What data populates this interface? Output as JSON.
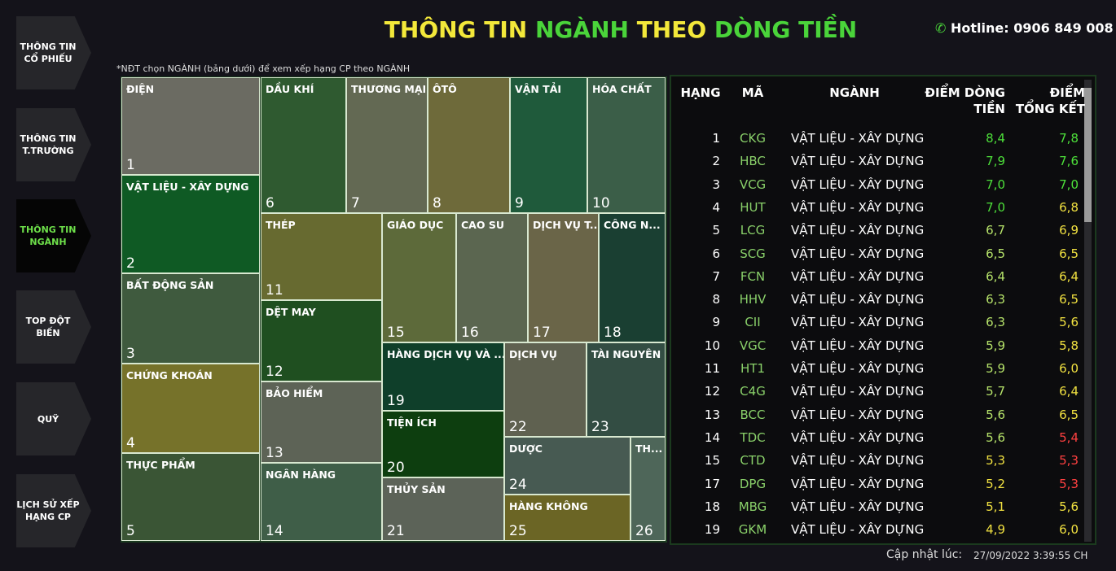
{
  "nav": [
    "THÔNG TIN CỔ PHIẾU",
    "THÔNG TIN T.TRƯỜNG",
    "THÔNG TIN NGÀNH",
    "TOP ĐỘT BIẾN",
    "QUỸ",
    "LỊCH SỬ XẾP HẠNG CP"
  ],
  "title": [
    "THÔNG TIN",
    "NGÀNH",
    "THEO",
    "DÒNG TIỀN"
  ],
  "hotline": "Hotline: 0906 849 008",
  "note": "*NĐT chọn NGÀNH (bảng dưới) để xem xếp hạng CP theo NGÀNH",
  "tiles": [
    [
      "ĐIỆN",
      "1"
    ],
    [
      "VẬT LIỆU - XÂY DỰNG",
      "2"
    ],
    [
      "BẤT ĐỘNG SẢN",
      "3"
    ],
    [
      "CHỨNG KHOÁN",
      "4"
    ],
    [
      "THỰC PHẨM",
      "5"
    ],
    [
      "DẦU KHÍ",
      "6"
    ],
    [
      "THƯƠNG MẠI",
      "7"
    ],
    [
      "ÔTÔ",
      "8"
    ],
    [
      "VẬN TẢI",
      "9"
    ],
    [
      "HÓA CHẤT",
      "10"
    ],
    [
      "THÉP",
      "11"
    ],
    [
      "DỆT MAY",
      "12"
    ],
    [
      "BẢO HIỂM",
      "13"
    ],
    [
      "NGÂN HÀNG",
      "14"
    ],
    [
      "GIÁO DỤC",
      "15"
    ],
    [
      "CAO SU",
      "16"
    ],
    [
      "DỊCH VỤ T...",
      "17"
    ],
    [
      "CÔNG N...",
      "18"
    ],
    [
      "HÀNG DỊCH VỤ VÀ ...",
      "19"
    ],
    [
      "TIỆN ÍCH",
      "20"
    ],
    [
      "THỦY SẢN",
      "21"
    ],
    [
      "DỊCH VỤ",
      "22"
    ],
    [
      "TÀI NGUYÊN",
      "23"
    ],
    [
      "DƯỢC",
      "24"
    ],
    [
      "HÀNG KHÔNG",
      "25"
    ],
    [
      "TH...",
      "26"
    ]
  ],
  "table": {
    "header": [
      "HẠNG",
      "MÃ",
      "NGÀNH",
      "ĐIỂM DÒNG TIỀN",
      "ĐIỂM TỔNG KẾT"
    ],
    "rows": [
      [
        "1",
        "CKG",
        "VẬT LIỆU - XÂY DỰNG",
        "8,4",
        "7,8"
      ],
      [
        "2",
        "HBC",
        "VẬT LIỆU - XÂY DỰNG",
        "7,9",
        "7,6"
      ],
      [
        "3",
        "VCG",
        "VẬT LIỆU - XÂY DỰNG",
        "7,0",
        "7,0"
      ],
      [
        "4",
        "HUT",
        "VẬT LIỆU - XÂY DỰNG",
        "7,0",
        "6,8"
      ],
      [
        "5",
        "LCG",
        "VẬT LIỆU - XÂY DỰNG",
        "6,7",
        "6,9"
      ],
      [
        "6",
        "SCG",
        "VẬT LIỆU - XÂY DỰNG",
        "6,5",
        "6,5"
      ],
      [
        "7",
        "FCN",
        "VẬT LIỆU - XÂY DỰNG",
        "6,4",
        "6,4"
      ],
      [
        "8",
        "HHV",
        "VẬT LIỆU - XÂY DỰNG",
        "6,3",
        "6,5"
      ],
      [
        "9",
        "CII",
        "VẬT LIỆU - XÂY DỰNG",
        "6,3",
        "5,6"
      ],
      [
        "10",
        "VGC",
        "VẬT LIỆU - XÂY DỰNG",
        "5,9",
        "5,8"
      ],
      [
        "11",
        "HT1",
        "VẬT LIỆU - XÂY DỰNG",
        "5,9",
        "6,0"
      ],
      [
        "12",
        "C4G",
        "VẬT LIỆU - XÂY DỰNG",
        "5,7",
        "6,4"
      ],
      [
        "13",
        "BCC",
        "VẬT LIỆU - XÂY DỰNG",
        "5,6",
        "6,5"
      ],
      [
        "14",
        "TDC",
        "VẬT LIỆU - XÂY DỰNG",
        "5,6",
        "5,4"
      ],
      [
        "15",
        "CTD",
        "VẬT LIỆU - XÂY DỰNG",
        "5,3",
        "5,3"
      ],
      [
        "17",
        "DPG",
        "VẬT LIỆU - XÂY DỰNG",
        "5,2",
        "5,3"
      ],
      [
        "18",
        "MBG",
        "VẬT LIỆU - XÂY DỰNG",
        "5,1",
        "5,6"
      ],
      [
        "19",
        "GKM",
        "VẬT LIỆU - XÂY DỰNG",
        "4,9",
        "6,0"
      ]
    ]
  },
  "footer": {
    "label": "Cập nhật lúc:",
    "time": "27/09/2022 3:39:55 CH"
  }
}
